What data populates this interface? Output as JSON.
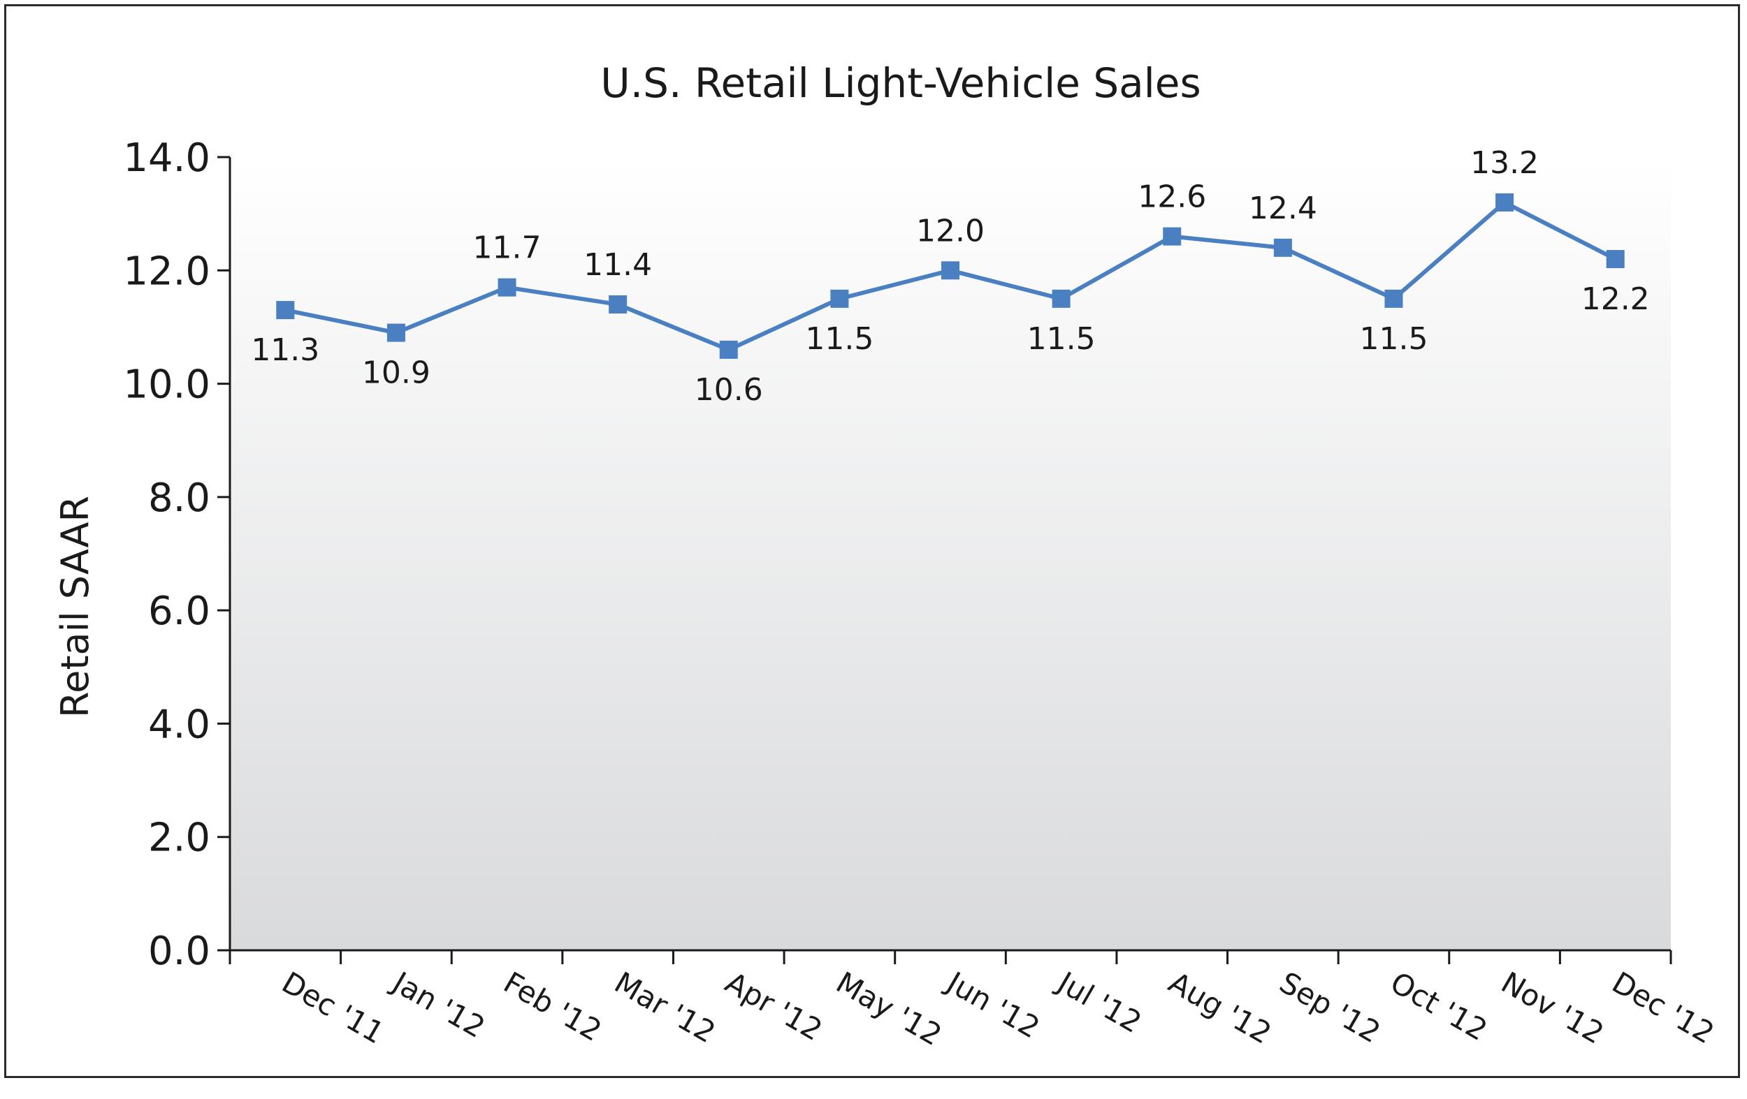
{
  "chart_data": {
    "type": "line",
    "title": "U.S. Retail Light-Vehicle Sales",
    "xlabel": "",
    "ylabel": "Retail SAAR",
    "categories": [
      "Dec '11",
      "Jan '12",
      "Feb '12",
      "Mar '12",
      "Apr '12",
      "May '12",
      "Jun '12",
      "Jul '12",
      "Aug '12",
      "Sep '12",
      "Oct '12",
      "Nov '12",
      "Dec '12"
    ],
    "series": [
      {
        "values": [
          11.3,
          10.9,
          11.7,
          11.4,
          10.6,
          11.5,
          12.0,
          11.5,
          12.6,
          12.4,
          11.5,
          13.2,
          12.2
        ],
        "data_labels": [
          "11.3",
          "10.9",
          "11.7",
          "11.4",
          "10.6",
          "11.5",
          "12.0",
          "11.5",
          "12.6",
          "12.4",
          "11.5",
          "13.2",
          "12.2"
        ],
        "label_positions": [
          "below",
          "below",
          "above",
          "above",
          "below",
          "below",
          "above",
          "below",
          "above",
          "above",
          "below",
          "above",
          "below"
        ],
        "color": "#4a7fc1"
      }
    ],
    "ylim": [
      0,
      14
    ],
    "yticks": [
      0,
      2,
      4,
      6,
      8,
      10,
      12,
      14
    ],
    "ytick_labels": [
      "0.0",
      "2.0",
      "4.0",
      "6.0",
      "8.0",
      "10.0",
      "12.0",
      "14.0"
    ],
    "grid": false,
    "legend": "none",
    "background_gradient": [
      "#ffffff",
      "#d9dadc"
    ]
  }
}
